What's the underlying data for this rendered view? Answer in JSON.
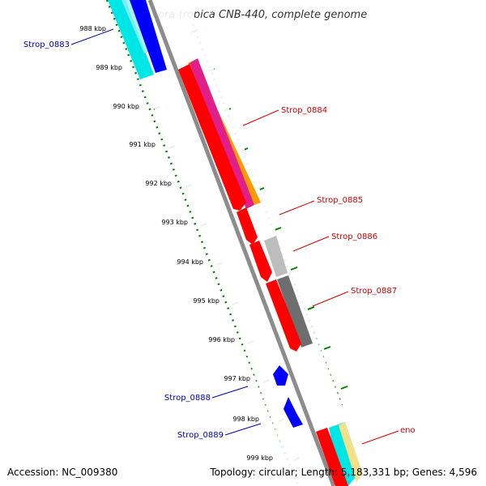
{
  "title": "Salinispora tropica CNB-440, complete genome",
  "footer": {
    "accession": "Accession: NC_009380",
    "summary": "Topology: circular; Length: 5,183,331 bp; Genes: 4,596"
  },
  "ticks": [
    "988 kbp",
    "989 kbp",
    "990 kbp",
    "991 kbp",
    "992 kbp",
    "993 kbp",
    "994 kbp",
    "995 kbp",
    "996 kbp",
    "997 kbp",
    "998 kbp",
    "999 kbp"
  ],
  "genes": [
    {
      "label": "Strop_0883",
      "strand": "reverse",
      "color": "#0000b0"
    },
    {
      "label": "Strop_0884",
      "strand": "forward",
      "color": "#d00000"
    },
    {
      "label": "Strop_0885",
      "strand": "forward",
      "color": "#d00000"
    },
    {
      "label": "Strop_0886",
      "strand": "forward",
      "color": "#d00000"
    },
    {
      "label": "Strop_0887",
      "strand": "forward",
      "color": "#d00000"
    },
    {
      "label": "Strop_0888",
      "strand": "reverse",
      "color": "#0000b0"
    },
    {
      "label": "Strop_0889",
      "strand": "reverse",
      "color": "#0000b0"
    },
    {
      "label": "eno",
      "strand": "forward",
      "color": "#d00000"
    }
  ],
  "colors": {
    "backbone": "#8c8c8c",
    "forward_cds": "#ff0000",
    "reverse_cds": "#0000ff",
    "gc_skew_cyan": "#00e5e5",
    "magenta": "#e0208a",
    "orange": "#ff9900",
    "grey_light": "#bdbdbd",
    "grey_dark": "#6e6e6e",
    "tick_green": "#008000"
  }
}
